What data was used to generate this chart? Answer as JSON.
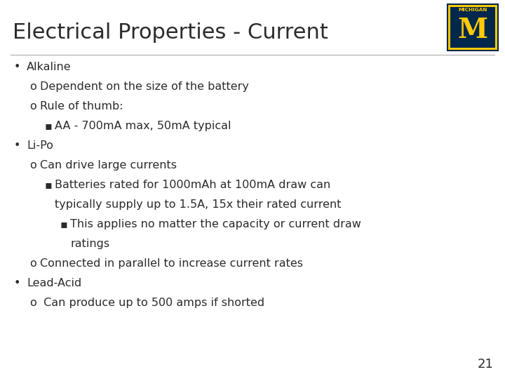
{
  "title": "Electrical Properties - Current",
  "title_fontsize": 22,
  "title_color": "#2b2b2b",
  "background_color": "#ffffff",
  "page_number": "21",
  "text_color": "#2b2b2b",
  "content_fontsize": 11.5,
  "divider_color": "#aaaaaa",
  "logo": {
    "navy": "#00274C",
    "gold": "#FFCB05"
  },
  "lines": [
    {
      "indent": 0,
      "bullet": "•",
      "text": "Alkaline"
    },
    {
      "indent": 1,
      "bullet": "o",
      "text": "Dependent on the size of the battery"
    },
    {
      "indent": 1,
      "bullet": "o",
      "text": "Rule of thumb:"
    },
    {
      "indent": 2,
      "bullet": "▪",
      "text": "AA - 700mA max, 50mA typical"
    },
    {
      "indent": 0,
      "bullet": "•",
      "text": "Li-Po"
    },
    {
      "indent": 1,
      "bullet": "o",
      "text": "Can drive large currents"
    },
    {
      "indent": 2,
      "bullet": "▪",
      "text": "Batteries rated for 1000mAh at 100mA draw can"
    },
    {
      "indent": 2,
      "bullet": "",
      "text": "typically supply up to 1.5A, 15x their rated current"
    },
    {
      "indent": 3,
      "bullet": "▪",
      "text": "This applies no matter the capacity or current draw"
    },
    {
      "indent": 3,
      "bullet": "",
      "text": "ratings"
    },
    {
      "indent": 1,
      "bullet": "o",
      "text": "Connected in parallel to increase current rates"
    },
    {
      "indent": 0,
      "bullet": "•",
      "text": "Lead-Acid"
    },
    {
      "indent": 1,
      "bullet": "o",
      "text": " Can produce up to 500 amps if shorted"
    }
  ]
}
